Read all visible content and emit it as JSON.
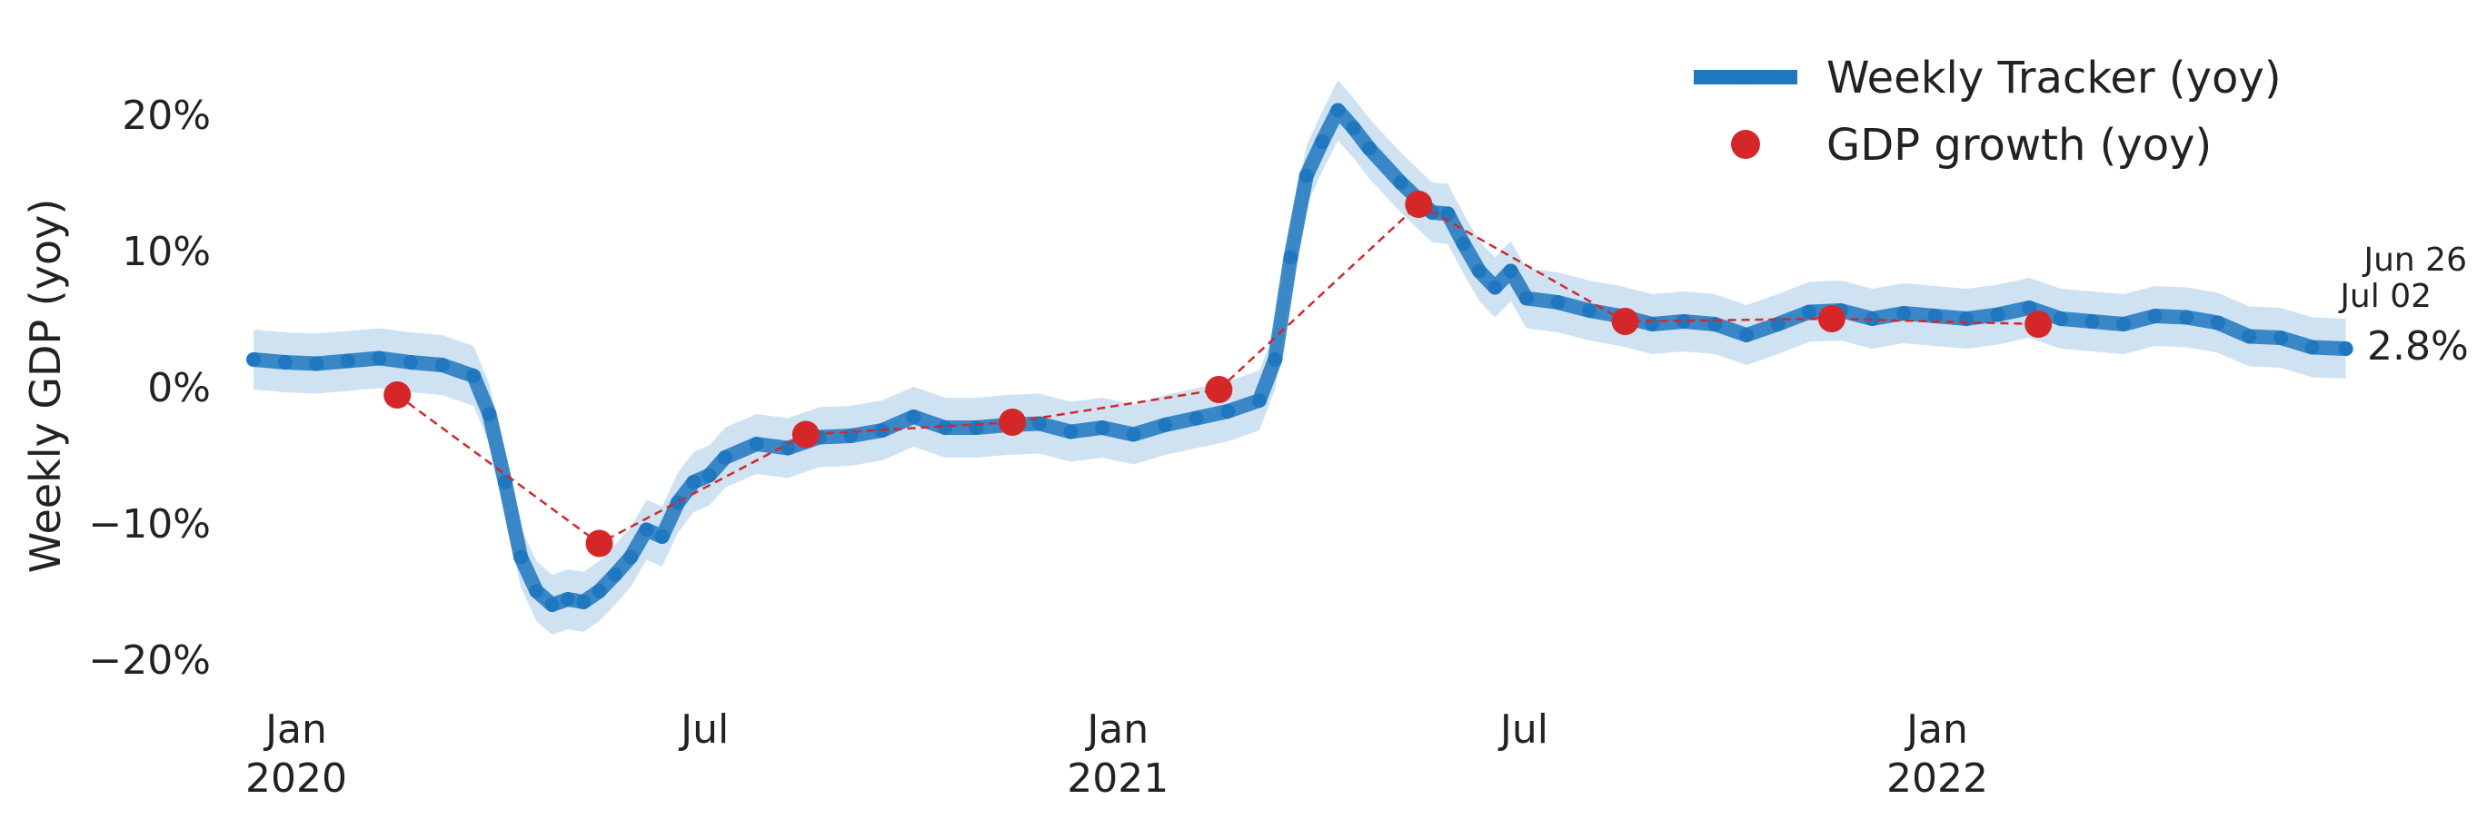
{
  "chart_data": {
    "type": "line",
    "ylabel": "Weekly GDP (yoy)",
    "ylim": [
      -24,
      25
    ],
    "y_ticks": [
      {
        "value": 20,
        "label": "20%"
      },
      {
        "value": 10,
        "label": "10%"
      },
      {
        "value": 0,
        "label": "0%"
      },
      {
        "value": -10,
        "label": "−10%"
      },
      {
        "value": -20,
        "label": "−20%"
      }
    ],
    "x_ticks": [
      {
        "date": "2020-01-01",
        "label": "Jan",
        "sublabel": "2020"
      },
      {
        "date": "2020-07-01",
        "label": "Jul",
        "sublabel": ""
      },
      {
        "date": "2021-01-01",
        "label": "Jan",
        "sublabel": "2021"
      },
      {
        "date": "2021-07-01",
        "label": "Jul",
        "sublabel": ""
      },
      {
        "date": "2022-01-01",
        "label": "Jan",
        "sublabel": "2022"
      }
    ],
    "legend_position": "top-right",
    "series": [
      {
        "name": "Weekly Tracker (yoy)",
        "color": "#1f77c0",
        "band_color": "#a6cbe8",
        "points": [
          [
            "2019-12-13",
            2.0
          ],
          [
            "2019-12-27",
            1.8
          ],
          [
            "2020-01-10",
            1.7
          ],
          [
            "2020-01-24",
            1.9
          ],
          [
            "2020-02-07",
            2.1
          ],
          [
            "2020-02-21",
            1.8
          ],
          [
            "2020-03-06",
            1.6
          ],
          [
            "2020-03-20",
            0.8
          ],
          [
            "2020-03-27",
            -2.0
          ],
          [
            "2020-04-03",
            -7.0
          ],
          [
            "2020-04-10",
            -12.5
          ],
          [
            "2020-04-17",
            -15.0
          ],
          [
            "2020-04-24",
            -16.0
          ],
          [
            "2020-05-01",
            -15.6
          ],
          [
            "2020-05-08",
            -15.8
          ],
          [
            "2020-05-15",
            -15.0
          ],
          [
            "2020-05-22",
            -13.8
          ],
          [
            "2020-05-29",
            -12.5
          ],
          [
            "2020-06-05",
            -10.5
          ],
          [
            "2020-06-12",
            -11.0
          ],
          [
            "2020-06-19",
            -8.5
          ],
          [
            "2020-06-26",
            -7.0
          ],
          [
            "2020-07-03",
            -6.5
          ],
          [
            "2020-07-10",
            -5.2
          ],
          [
            "2020-07-24",
            -4.2
          ],
          [
            "2020-08-07",
            -4.5
          ],
          [
            "2020-08-21",
            -3.7
          ],
          [
            "2020-09-04",
            -3.6
          ],
          [
            "2020-09-18",
            -3.2
          ],
          [
            "2020-10-02",
            -2.2
          ],
          [
            "2020-10-16",
            -3.0
          ],
          [
            "2020-10-30",
            -3.0
          ],
          [
            "2020-11-13",
            -2.8
          ],
          [
            "2020-11-27",
            -2.7
          ],
          [
            "2020-12-11",
            -3.3
          ],
          [
            "2020-12-25",
            -3.0
          ],
          [
            "2021-01-08",
            -3.5
          ],
          [
            "2021-01-22",
            -2.8
          ],
          [
            "2021-02-05",
            -2.3
          ],
          [
            "2021-02-19",
            -1.8
          ],
          [
            "2021-03-05",
            -1.0
          ],
          [
            "2021-03-12",
            2.0
          ],
          [
            "2021-03-19",
            9.5
          ],
          [
            "2021-03-26",
            15.5
          ],
          [
            "2021-04-02",
            18.0
          ],
          [
            "2021-04-09",
            20.3
          ],
          [
            "2021-04-16",
            19.0
          ],
          [
            "2021-04-23",
            17.5
          ],
          [
            "2021-05-07",
            15.0
          ],
          [
            "2021-05-21",
            12.8
          ],
          [
            "2021-05-28",
            12.7
          ],
          [
            "2021-06-04",
            10.5
          ],
          [
            "2021-06-11",
            8.5
          ],
          [
            "2021-06-18",
            7.3
          ],
          [
            "2021-06-25",
            8.5
          ],
          [
            "2021-07-02",
            6.5
          ],
          [
            "2021-07-16",
            6.2
          ],
          [
            "2021-07-30",
            5.6
          ],
          [
            "2021-08-13",
            5.2
          ],
          [
            "2021-08-27",
            4.6
          ],
          [
            "2021-09-10",
            4.8
          ],
          [
            "2021-09-24",
            4.6
          ],
          [
            "2021-10-08",
            3.8
          ],
          [
            "2021-10-22",
            4.6
          ],
          [
            "2021-11-05",
            5.5
          ],
          [
            "2021-11-19",
            5.6
          ],
          [
            "2021-12-03",
            5.0
          ],
          [
            "2021-12-17",
            5.4
          ],
          [
            "2021-12-31",
            5.2
          ],
          [
            "2022-01-14",
            5.0
          ],
          [
            "2022-01-28",
            5.3
          ],
          [
            "2022-02-11",
            5.8
          ],
          [
            "2022-02-25",
            5.0
          ],
          [
            "2022-03-11",
            4.8
          ],
          [
            "2022-03-25",
            4.6
          ],
          [
            "2022-04-08",
            5.2
          ],
          [
            "2022-04-22",
            5.1
          ],
          [
            "2022-05-06",
            4.7
          ],
          [
            "2022-05-20",
            3.7
          ],
          [
            "2022-06-03",
            3.6
          ],
          [
            "2022-06-17",
            2.9
          ],
          [
            "2022-07-02",
            2.8
          ]
        ]
      },
      {
        "name": "GDP growth (yoy)",
        "color": "#d62728",
        "points": [
          [
            "2020-02-15",
            -0.6
          ],
          [
            "2020-05-15",
            -11.5
          ],
          [
            "2020-08-15",
            -3.5
          ],
          [
            "2020-11-15",
            -2.6
          ],
          [
            "2021-02-15",
            -0.2
          ],
          [
            "2021-05-15",
            13.4
          ],
          [
            "2021-08-15",
            4.8
          ],
          [
            "2021-11-15",
            5.0
          ],
          [
            "2022-02-15",
            4.6
          ]
        ]
      }
    ],
    "annotations": {
      "date_line_1": "Jun 26",
      "date_line_2": "Jul 02",
      "latest_value": "2.8%"
    }
  }
}
